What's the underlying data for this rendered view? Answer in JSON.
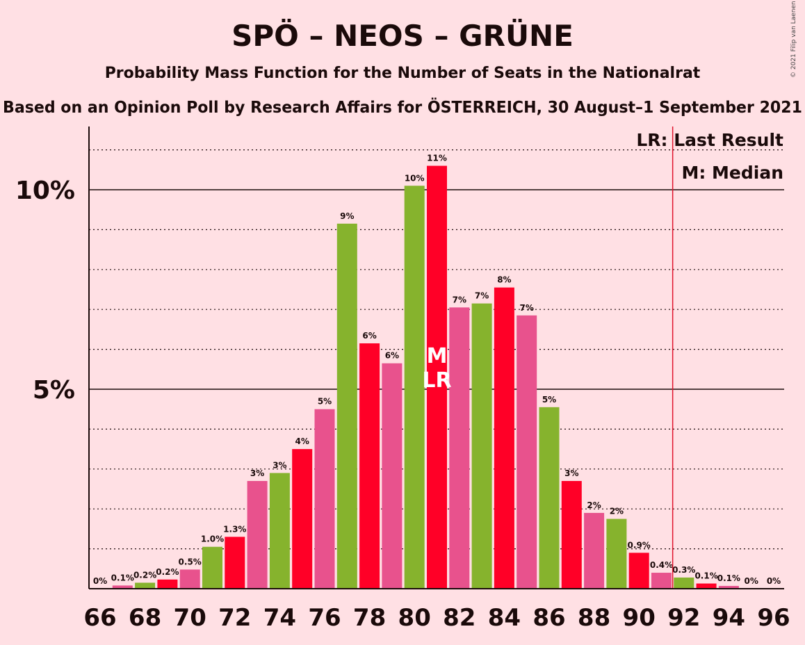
{
  "copyright": "© 2021 Filip van Laenen",
  "colors": {
    "background": "#FFE0E4",
    "green": "#86B32D",
    "red": "#FF0027",
    "pink": "#E8528D",
    "last_result_line": "#E0142C",
    "text": "#1a0a0a"
  },
  "chart_data": {
    "type": "bar",
    "title": "SPÖ – NEOS – GRÜNE",
    "subtitle": "Probability Mass Function for the Number of Seats in the Nationalrat",
    "subtitle2": "Based on an Opinion Poll by Research Affairs for ÖSTERREICH, 30 August–1 September 2021",
    "xlabel": "",
    "ylabel": "",
    "ylim": [
      0,
      11.6
    ],
    "xlim": [
      66,
      96
    ],
    "grid": true,
    "y_ticks": [
      {
        "value": 5,
        "label": "5%"
      },
      {
        "value": 10,
        "label": "10%"
      }
    ],
    "x_tick_labels": [
      "66",
      "68",
      "70",
      "72",
      "74",
      "76",
      "78",
      "80",
      "82",
      "84",
      "86",
      "88",
      "90",
      "92",
      "94",
      "96"
    ],
    "bar_color_cycle": [
      "red",
      "pink",
      "green"
    ],
    "x": [
      66,
      67,
      68,
      69,
      70,
      71,
      72,
      73,
      74,
      75,
      76,
      77,
      78,
      79,
      80,
      81,
      82,
      83,
      84,
      85,
      86,
      87,
      88,
      89,
      90,
      91,
      92,
      93,
      94,
      95,
      96
    ],
    "values": [
      0.0,
      0.08,
      0.15,
      0.23,
      0.48,
      1.05,
      1.3,
      2.7,
      2.9,
      3.5,
      4.5,
      9.15,
      6.15,
      5.65,
      10.1,
      10.6,
      7.05,
      7.15,
      7.55,
      6.85,
      4.55,
      2.7,
      1.9,
      1.75,
      0.9,
      0.4,
      0.28,
      0.13,
      0.07,
      0.0,
      0.0
    ],
    "data_labels": [
      "0%",
      "0.1%",
      "0.2%",
      "0.2%",
      "0.5%",
      "1.0%",
      "1.3%",
      "3%",
      "3%",
      "4%",
      "5%",
      "9%",
      "6%",
      "6%",
      "10%",
      "11%",
      "7%",
      "7%",
      "8%",
      "7%",
      "5%",
      "3%",
      "2%",
      "2%",
      "0.9%",
      "0.4%",
      "0.3%",
      "0.1%",
      "0.1%",
      "0%",
      "0%"
    ],
    "median_seat": 81,
    "median_marker": "M",
    "last_result_seat": 81,
    "last_result_marker": "LR",
    "majority_seat": 92,
    "legend": {
      "position": "top-right",
      "items": [
        "LR: Last Result",
        "M: Median"
      ]
    }
  }
}
